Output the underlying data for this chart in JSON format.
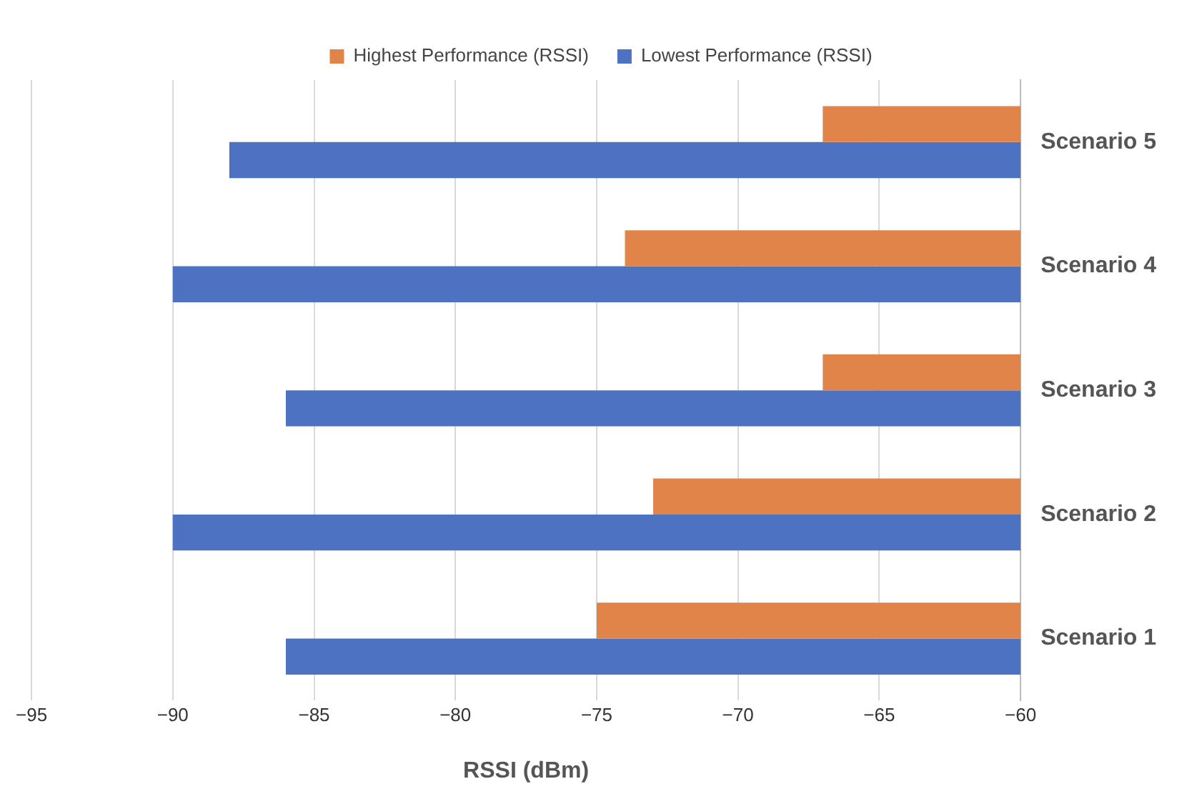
{
  "chart_data": {
    "type": "bar",
    "orientation": "horizontal",
    "xlabel": "RSSI (dBm)",
    "categories": [
      "Scenario 5",
      "Scenario 4",
      "Scenario 3",
      "Scenario 2",
      "Scenario 1"
    ],
    "series": [
      {
        "name": "Highest Performance (RSSI)",
        "color": "#e0844a",
        "values": [
          -67,
          -74,
          -67,
          -73,
          -75
        ]
      },
      {
        "name": "Lowest Performance (RSSI)",
        "color": "#4e72c2",
        "values": [
          -88,
          -90,
          -86,
          -90,
          -86
        ]
      }
    ],
    "xlim": [
      -95,
      -60
    ],
    "xticks": [
      {
        "value": -95,
        "label": "−95"
      },
      {
        "value": -90,
        "label": "−90"
      },
      {
        "value": -85,
        "label": "−85"
      },
      {
        "value": -80,
        "label": "−80"
      },
      {
        "value": -75,
        "label": "−75"
      },
      {
        "value": -70,
        "label": "−70"
      },
      {
        "value": -65,
        "label": "−65"
      },
      {
        "value": -60,
        "label": "−60"
      }
    ],
    "grid": "x",
    "legend": "top"
  }
}
